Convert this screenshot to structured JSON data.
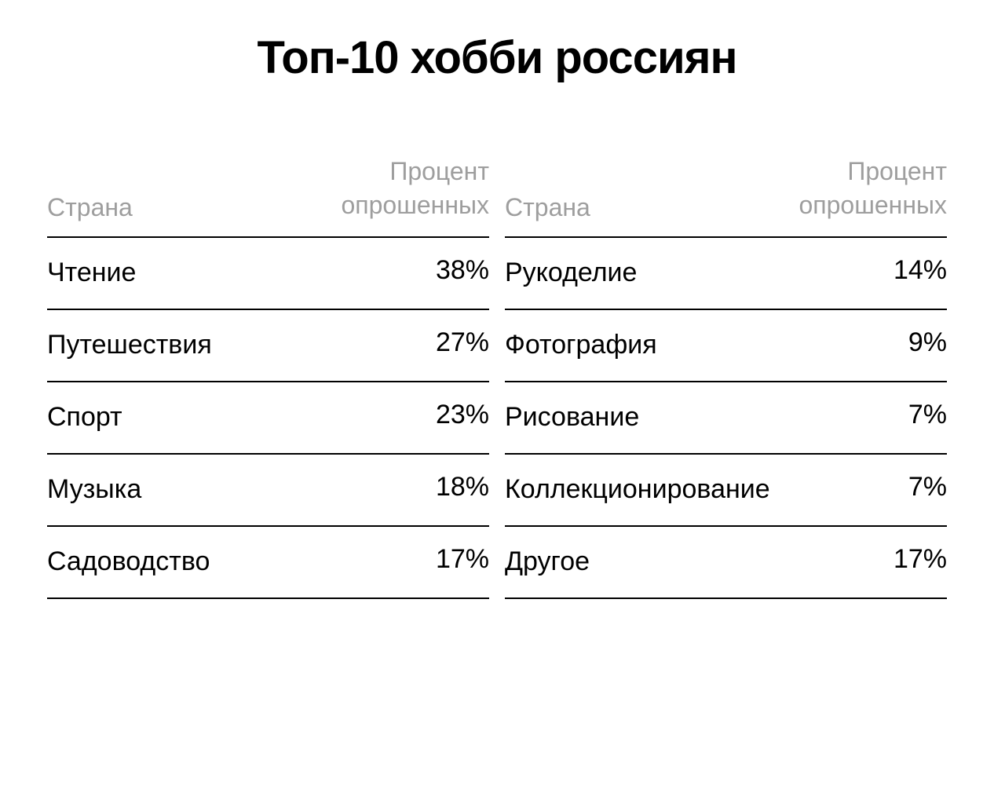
{
  "title": "Топ-10 хобби россиян",
  "table": {
    "type": "table",
    "header_left": "Страна",
    "header_right_line1": "Процент",
    "header_right_line2": "опрошенных",
    "header_color": "#9e9e9e",
    "text_color": "#000000",
    "border_color": "#000000",
    "background_color": "#ffffff",
    "title_fontsize": 58,
    "header_fontsize": 32,
    "cell_fontsize": 34,
    "left": {
      "rows": [
        {
          "label": "Чтение",
          "value": "38%"
        },
        {
          "label": "Путешествия",
          "value": "27%"
        },
        {
          "label": "Спорт",
          "value": "23%"
        },
        {
          "label": "Музыка",
          "value": "18%"
        },
        {
          "label": "Садоводство",
          "value": "17%"
        }
      ]
    },
    "right": {
      "rows": [
        {
          "label": "Рукоделие",
          "value": "14%"
        },
        {
          "label": "Фотография",
          "value": "9%"
        },
        {
          "label": "Рисование",
          "value": "7%"
        },
        {
          "label": "Коллекционирование",
          "value": "7%"
        },
        {
          "label": "Другое",
          "value": "17%"
        }
      ]
    }
  }
}
